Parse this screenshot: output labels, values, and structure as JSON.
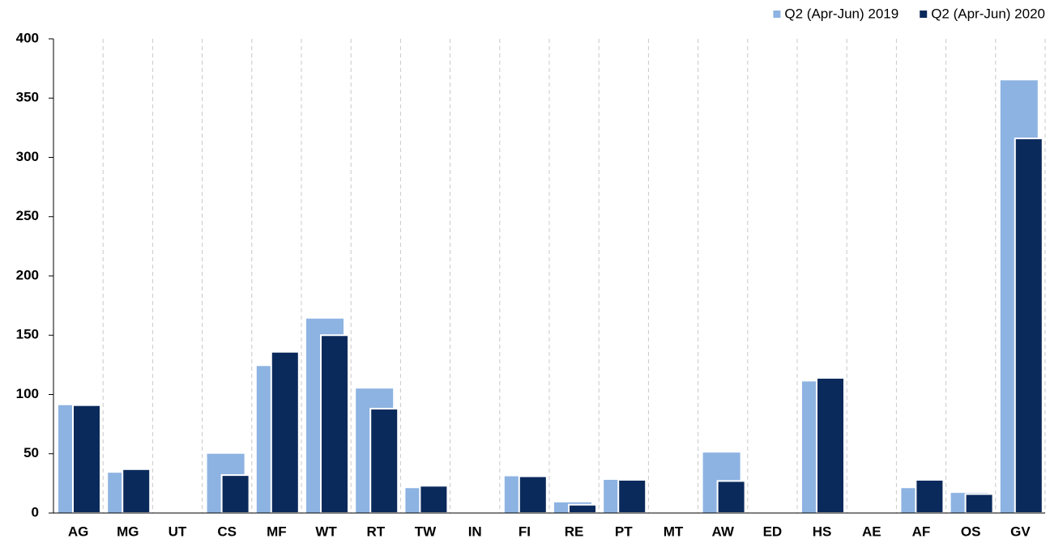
{
  "chart_data": {
    "type": "bar",
    "categories": [
      "AG",
      "MG",
      "UT",
      "CS",
      "MF",
      "WT",
      "RT",
      "TW",
      "IN",
      "FI",
      "RE",
      "PT",
      "MT",
      "AW",
      "ED",
      "HS",
      "AE",
      "AF",
      "OS",
      "GV"
    ],
    "series": [
      {
        "name": "Q2 (Apr-Jun) 2019",
        "color": "#8db3e2",
        "values": [
          91,
          34,
          0,
          50,
          124,
          164,
          105,
          21,
          0,
          31,
          9,
          28,
          0,
          51,
          0,
          111,
          0,
          21,
          17,
          365
        ]
      },
      {
        "name": "Q2 (Apr-Jun) 2020",
        "color": "#0b2a5c",
        "values": [
          91,
          37,
          0,
          32,
          136,
          150,
          88,
          23,
          0,
          31,
          7,
          28,
          0,
          27,
          0,
          114,
          0,
          28,
          16,
          316
        ]
      }
    ],
    "ylim": [
      0,
      400
    ],
    "yticks": [
      0,
      50,
      100,
      150,
      200,
      250,
      300,
      350,
      400
    ],
    "grid": true,
    "legend": "top-right"
  }
}
